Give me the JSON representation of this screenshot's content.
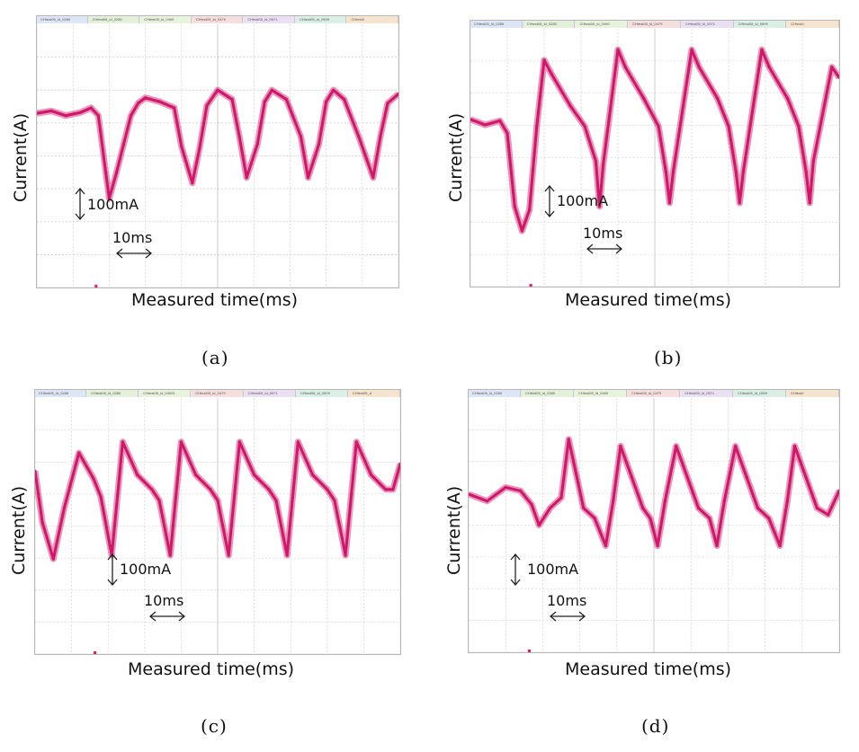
{
  "colors": {
    "trace": "#d0186a",
    "grid": "#c9c9c9",
    "frame": "#9a9a9a",
    "accent_dot": "#e0205a"
  },
  "chart_data": [
    {
      "id": "a",
      "type": "line",
      "caption": "(a)",
      "xlabel": "Measured time(ms)",
      "ylabel": "Current(A)",
      "scale_current": "100mA",
      "scale_time": "10ms",
      "tabs": [
        "CHtest05_ld_0286",
        "CHtest05_ld_0280",
        "CHtest05_ld_0490",
        "CHtest05_ld_0479",
        "CHtest05_ld_0571",
        "CHtest05_ld_0509",
        "CHtest0"
      ],
      "x": [
        0,
        4,
        8,
        12,
        15,
        17,
        20,
        22,
        24,
        26,
        28,
        30,
        34,
        38,
        40,
        43,
        45,
        47,
        50,
        54,
        56,
        58,
        61,
        63,
        65,
        69,
        73,
        75,
        78,
        80,
        82,
        85,
        89,
        93,
        95,
        97,
        100
      ],
      "y": [
        0.15,
        0.18,
        0.12,
        0.16,
        0.22,
        0.12,
        -0.95,
        -0.62,
        -0.25,
        0.12,
        0.28,
        0.35,
        0.3,
        0.22,
        -0.28,
        -0.75,
        -0.3,
        0.25,
        0.45,
        0.33,
        -0.15,
        -0.68,
        -0.25,
        0.3,
        0.45,
        0.33,
        -0.15,
        -0.68,
        -0.25,
        0.3,
        0.45,
        0.33,
        -0.15,
        -0.68,
        -0.15,
        0.28,
        0.4
      ],
      "xlim": [
        0,
        100
      ],
      "ylim": [
        -2.1,
        1.3
      ]
    },
    {
      "id": "b",
      "type": "line",
      "caption": "(b)",
      "xlabel": "Measured time(ms)",
      "ylabel": "Current(A)",
      "scale_current": "100mA",
      "scale_time": "10ms",
      "tabs": [
        "CHtest05_ld_0286",
        "CHtest05_ld_0280",
        "CHtest05_ld_0490",
        "CHtest05_ld_0479",
        "CHtest05_ld_0571",
        "CHtest05_ld_0509",
        "CHtest0"
      ],
      "x": [
        0,
        4,
        8,
        10,
        12,
        14,
        16,
        18,
        20,
        22,
        27,
        31,
        34,
        35,
        36,
        40,
        42,
        47,
        51,
        53,
        54,
        55,
        60,
        62,
        67,
        70,
        72,
        73,
        74,
        79,
        81,
        86,
        89,
        91,
        92,
        93,
        98,
        100
      ],
      "y": [
        0.3,
        0.22,
        0.28,
        0.1,
        -0.95,
        -1.3,
        -1.0,
        0.2,
        1.15,
        0.95,
        0.5,
        0.2,
        -0.3,
        -0.95,
        -0.35,
        1.3,
        1.05,
        0.6,
        0.2,
        -0.45,
        -0.9,
        -0.45,
        1.3,
        1.05,
        0.6,
        0.2,
        -0.45,
        -0.9,
        -0.45,
        1.3,
        1.05,
        0.6,
        0.2,
        -0.45,
        -0.9,
        -0.3,
        1.05,
        0.9
      ],
      "xlim": [
        0,
        100
      ],
      "ylim": [
        -2.1,
        1.6
      ]
    },
    {
      "id": "c",
      "type": "line",
      "caption": "(c)",
      "xlabel": "Measured time(ms)",
      "ylabel": "Current(A)",
      "scale_current": "100mA",
      "scale_time": "10ms",
      "tabs": [
        "CHtest05_ld_0286",
        "CHtest05_ld_0280",
        "CHtest05_ld_04091",
        "CHtest05_ld_0479",
        "CHtest05_ld_0571",
        "CHtest05_ld_0509",
        "CHtest05_d"
      ],
      "x": [
        0,
        2,
        5,
        8,
        12,
        16,
        18,
        21,
        24,
        28,
        32,
        34,
        37,
        40,
        44,
        48,
        50,
        53,
        56,
        60,
        64,
        66,
        69,
        72,
        76,
        80,
        82,
        85,
        88,
        92,
        96,
        98,
        100
      ],
      "y": [
        0.3,
        -0.4,
        -0.9,
        -0.2,
        0.55,
        0.2,
        -0.05,
        -0.85,
        0.7,
        0.25,
        0.05,
        -0.1,
        -0.85,
        0.7,
        0.25,
        0.05,
        -0.1,
        -0.85,
        0.7,
        0.25,
        0.05,
        -0.1,
        -0.85,
        0.7,
        0.25,
        0.05,
        -0.1,
        -0.85,
        0.7,
        0.25,
        0.05,
        0.05,
        0.4
      ],
      "xlim": [
        0,
        100
      ],
      "ylim": [
        -2.2,
        1.3
      ]
    },
    {
      "id": "d",
      "type": "line",
      "caption": "(d)",
      "xlabel": "Measured time(ms)",
      "ylabel": "Current(A)",
      "scale_current": "100mA",
      "scale_time": "10ms",
      "tabs": [
        "CHtest05_ld_0286",
        "CHtest05_ld_0280",
        "CHtest05_ld_0490",
        "CHtest05_ld_0479",
        "CHtest05_ld_0571",
        "CHtest05_ld_0509",
        "CHtest0"
      ],
      "x": [
        0,
        5,
        10,
        14,
        17,
        19,
        22,
        25,
        27,
        29,
        31,
        34,
        37,
        39,
        41,
        44,
        47,
        49,
        51,
        53,
        56,
        59,
        62,
        65,
        67,
        69,
        72,
        75,
        78,
        81,
        84,
        86,
        88,
        91,
        94,
        97,
        100
      ],
      "y": [
        0.0,
        -0.1,
        0.1,
        0.05,
        -0.15,
        -0.45,
        -0.2,
        -0.05,
        0.8,
        0.3,
        -0.2,
        -0.35,
        -0.75,
        -0.1,
        0.7,
        0.25,
        -0.2,
        -0.35,
        -0.75,
        -0.1,
        0.7,
        0.25,
        -0.2,
        -0.35,
        -0.75,
        -0.1,
        0.7,
        0.25,
        -0.2,
        -0.35,
        -0.75,
        -0.1,
        0.7,
        0.25,
        -0.2,
        -0.3,
        0.05
      ],
      "xlim": [
        0,
        100
      ],
      "ylim": [
        -2.3,
        1.4
      ]
    }
  ]
}
